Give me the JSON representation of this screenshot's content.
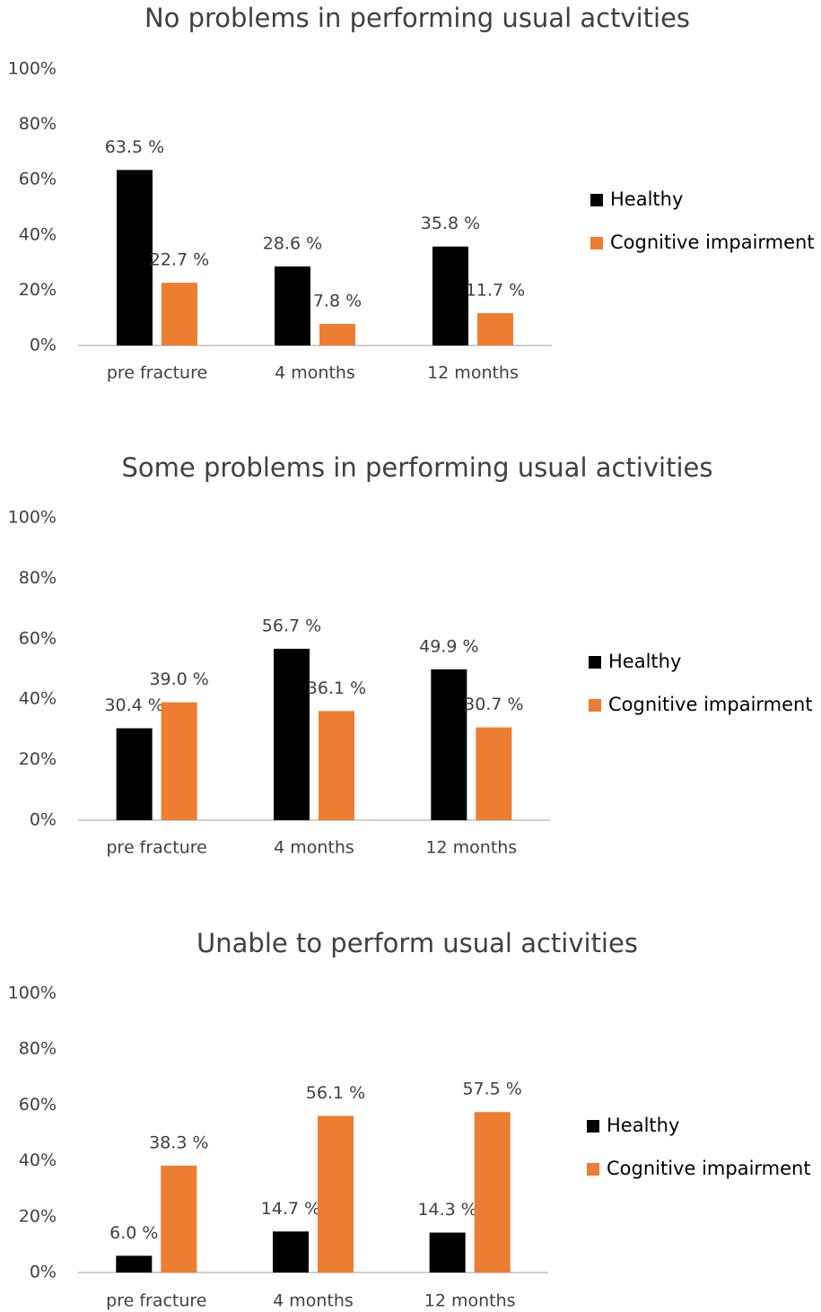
{
  "chart_data": [
    {
      "type": "bar",
      "title": "No problems in performing usual actvities",
      "categories": [
        "pre fracture",
        "4 months",
        "12 months"
      ],
      "series": [
        {
          "name": "Healthy",
          "color": "#000000",
          "values": [
            63.5,
            28.6,
            35.8
          ],
          "value_labels": [
            "63.5 %",
            "28.6 %",
            "35.8 %"
          ]
        },
        {
          "name": "Cognitive impairment",
          "color": "#ed7d31",
          "values": [
            22.7,
            7.8,
            11.7
          ],
          "value_labels": [
            "22.7 %",
            "7.8 %",
            "11.7 %"
          ]
        }
      ],
      "ylim": [
        0,
        100
      ],
      "yticks": [
        {
          "value": 0,
          "label": "0%"
        },
        {
          "value": 20,
          "label": "20%"
        },
        {
          "value": 40,
          "label": "40%"
        },
        {
          "value": 60,
          "label": "60%"
        },
        {
          "value": 80,
          "label": "80%"
        },
        {
          "value": 100,
          "label": "100%"
        }
      ],
      "legend": "right"
    },
    {
      "type": "bar",
      "title": "Some problems in performing usual activities",
      "categories": [
        "pre fracture",
        "4 months",
        "12 months"
      ],
      "series": [
        {
          "name": "Healthy",
          "color": "#000000",
          "values": [
            30.4,
            56.7,
            49.9
          ],
          "value_labels": [
            "30.4 %",
            "56.7 %",
            "49.9 %"
          ]
        },
        {
          "name": "Cognitive impairment",
          "color": "#ed7d31",
          "values": [
            39.0,
            36.1,
            30.7
          ],
          "value_labels": [
            "39.0 %",
            "36.1 %",
            "30.7 %"
          ]
        }
      ],
      "ylim": [
        0,
        100
      ],
      "yticks": [
        {
          "value": 0,
          "label": "0%"
        },
        {
          "value": 20,
          "label": "20%"
        },
        {
          "value": 40,
          "label": "40%"
        },
        {
          "value": 60,
          "label": "60%"
        },
        {
          "value": 80,
          "label": "80%"
        },
        {
          "value": 100,
          "label": "100%"
        }
      ],
      "legend": "right"
    },
    {
      "type": "bar",
      "title": "Unable to perform usual activities",
      "categories": [
        "pre fracture",
        "4 months",
        "12 months"
      ],
      "series": [
        {
          "name": "Healthy",
          "color": "#000000",
          "values": [
            6.0,
            14.7,
            14.3
          ],
          "value_labels": [
            "6.0 %",
            "14.7 %",
            "14.3 %"
          ]
        },
        {
          "name": "Cognitive impairment",
          "color": "#ed7d31",
          "values": [
            38.3,
            56.1,
            57.5
          ],
          "value_labels": [
            "38.3 %",
            "56.1 %",
            "57.5 %"
          ]
        }
      ],
      "ylim": [
        0,
        100
      ],
      "yticks": [
        {
          "value": 0,
          "label": "0%"
        },
        {
          "value": 20,
          "label": "20%"
        },
        {
          "value": 40,
          "label": "40%"
        },
        {
          "value": 60,
          "label": "60%"
        },
        {
          "value": 80,
          "label": "80%"
        },
        {
          "value": 100,
          "label": "100%"
        }
      ],
      "legend": "right"
    }
  ]
}
